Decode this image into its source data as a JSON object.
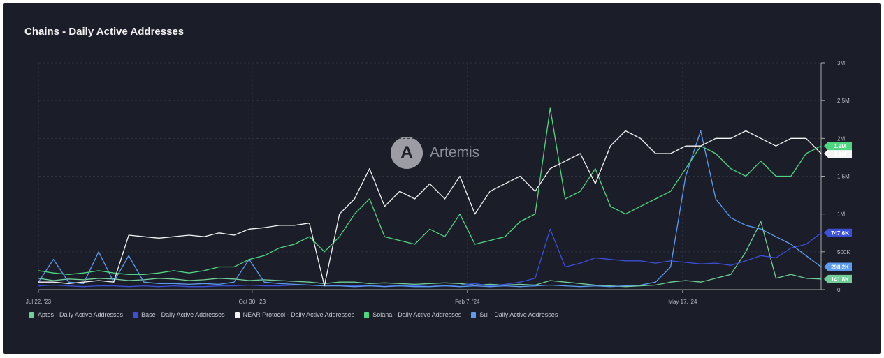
{
  "chart_data": {
    "type": "line",
    "title": "Chains - Daily Active Addresses",
    "xlabel": "",
    "ylabel": "",
    "x_unit": "weeks since Jul 22, '23",
    "x_ticks": [
      {
        "label": "Jul 22, '23",
        "week": 0
      },
      {
        "label": "Oct 30, '23",
        "week": 14.2
      },
      {
        "label": "Feb 7, '24",
        "week": 28.5
      },
      {
        "label": "May 17, '24",
        "week": 42.8
      }
    ],
    "y_ticks": [
      {
        "label": "0",
        "value": 0
      },
      {
        "label": "500K",
        "value": 0.5
      },
      {
        "label": "1M",
        "value": 1
      },
      {
        "label": "1.5M",
        "value": 1.5
      },
      {
        "label": "2M",
        "value": 2
      },
      {
        "label": "2.5M",
        "value": 2.5
      },
      {
        "label": "3M",
        "value": 3
      }
    ],
    "ylim": [
      0,
      3
    ],
    "y_unit": "millions",
    "grid": true,
    "legend_position": "bottom-left",
    "watermark": "Artemis",
    "series": [
      {
        "name": "Aptos - Daily Active Addresses",
        "color": "#6fcf97",
        "end_label": "141.8K",
        "values": [
          0.15,
          0.12,
          0.14,
          0.13,
          0.15,
          0.14,
          0.12,
          0.13,
          0.15,
          0.14,
          0.12,
          0.13,
          0.15,
          0.14,
          0.12,
          0.13,
          0.12,
          0.11,
          0.1,
          0.08,
          0.1,
          0.1,
          0.08,
          0.09,
          0.08,
          0.07,
          0.08,
          0.09,
          0.08,
          0.06,
          0.07,
          0.06,
          0.07,
          0.06,
          0.12,
          0.1,
          0.08,
          0.06,
          0.05,
          0.04,
          0.05,
          0.06,
          0.1,
          0.12,
          0.1,
          0.15,
          0.2,
          0.5,
          0.9,
          0.15,
          0.2,
          0.15,
          0.14
        ]
      },
      {
        "name": "Base - Daily Active Addresses",
        "color": "#3b4fd8",
        "end_label": "747.6K",
        "values": [
          0.05,
          0.06,
          0.05,
          0.04,
          0.05,
          0.05,
          0.04,
          0.05,
          0.04,
          0.05,
          0.04,
          0.04,
          0.05,
          0.05,
          0.06,
          0.05,
          0.05,
          0.06,
          0.06,
          0.05,
          0.06,
          0.05,
          0.05,
          0.06,
          0.05,
          0.05,
          0.06,
          0.05,
          0.06,
          0.08,
          0.05,
          0.07,
          0.1,
          0.15,
          0.8,
          0.3,
          0.35,
          0.42,
          0.4,
          0.38,
          0.38,
          0.35,
          0.38,
          0.36,
          0.34,
          0.35,
          0.32,
          0.38,
          0.45,
          0.42,
          0.55,
          0.6,
          0.75
        ]
      },
      {
        "name": "NEAR Protocol - Daily Active Addresses",
        "color": "#f4f4f4",
        "end_label": "1.8M",
        "values": [
          0.1,
          0.1,
          0.08,
          0.1,
          0.12,
          0.1,
          0.72,
          0.7,
          0.68,
          0.7,
          0.72,
          0.7,
          0.75,
          0.72,
          0.8,
          0.82,
          0.85,
          0.85,
          0.88,
          0.05,
          1.0,
          1.2,
          1.6,
          1.1,
          1.3,
          1.2,
          1.4,
          1.2,
          1.5,
          1.0,
          1.3,
          1.4,
          1.5,
          1.3,
          1.6,
          1.7,
          1.8,
          1.4,
          1.9,
          2.1,
          2.0,
          1.8,
          1.8,
          1.9,
          1.9,
          2.0,
          2.0,
          2.1,
          2.0,
          1.9,
          2.0,
          2.0,
          1.8
        ]
      },
      {
        "name": "Solana - Daily Active Addresses",
        "color": "#4fd680",
        "end_label": "1.9M",
        "values": [
          0.25,
          0.22,
          0.2,
          0.22,
          0.25,
          0.22,
          0.2,
          0.2,
          0.22,
          0.25,
          0.22,
          0.25,
          0.3,
          0.3,
          0.4,
          0.45,
          0.55,
          0.6,
          0.7,
          0.5,
          0.7,
          1.0,
          1.2,
          0.7,
          0.65,
          0.6,
          0.8,
          0.7,
          1.0,
          0.6,
          0.65,
          0.7,
          0.9,
          1.0,
          2.4,
          1.2,
          1.3,
          1.6,
          1.1,
          1.0,
          1.1,
          1.2,
          1.3,
          1.6,
          1.9,
          1.8,
          1.6,
          1.5,
          1.7,
          1.5,
          1.5,
          1.8,
          1.9
        ]
      },
      {
        "name": "Sui - Daily Active Addresses",
        "color": "#5b9cf0",
        "end_label": "298.2K",
        "values": [
          0.1,
          0.4,
          0.1,
          0.08,
          0.5,
          0.1,
          0.45,
          0.1,
          0.08,
          0.08,
          0.07,
          0.08,
          0.07,
          0.1,
          0.4,
          0.1,
          0.08,
          0.07,
          0.06,
          0.05,
          0.05,
          0.04,
          0.05,
          0.04,
          0.05,
          0.04,
          0.04,
          0.05,
          0.04,
          0.05,
          0.04,
          0.05,
          0.04,
          0.05,
          0.06,
          0.05,
          0.04,
          0.05,
          0.04,
          0.05,
          0.06,
          0.1,
          0.3,
          1.5,
          2.1,
          1.2,
          0.95,
          0.85,
          0.8,
          0.7,
          0.6,
          0.45,
          0.3
        ]
      }
    ]
  }
}
